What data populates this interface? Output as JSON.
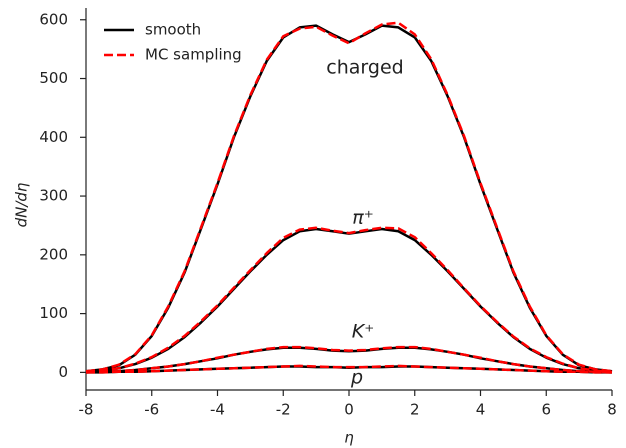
{
  "chart_data": {
    "type": "line",
    "xlabel": "η",
    "ylabel": "dN/dη",
    "x": [
      -8,
      -7.5,
      -7,
      -6.5,
      -6,
      -5.5,
      -5,
      -4.5,
      -4,
      -3.5,
      -3,
      -2.5,
      -2,
      -1.5,
      -1,
      -0.5,
      0,
      0.5,
      1,
      1.5,
      2,
      2.5,
      3,
      3.5,
      4,
      4.5,
      5,
      5.5,
      6,
      6.5,
      7,
      7.5,
      8
    ],
    "xlim": [
      -8,
      8
    ],
    "xticks": [
      -8,
      -6,
      -4,
      -2,
      0,
      2,
      4,
      6,
      8
    ],
    "ylim": [
      -30,
      620
    ],
    "yticks": [
      0,
      100,
      200,
      300,
      400,
      500,
      600
    ],
    "legend": "upper left",
    "grid": false,
    "annotations": [
      "charged",
      "π⁺",
      "K⁺",
      "p"
    ],
    "series": [
      {
        "name": "smooth",
        "color": "#000000",
        "dashed": false,
        "curves": [
          {
            "values": [
              2,
              5,
              12,
              30,
              62,
              110,
              170,
              245,
              320,
              400,
              470,
              530,
              570,
              587,
              590,
              575,
              562,
              575,
              590,
              587,
              570,
              530,
              470,
              400,
              320,
              245,
              170,
              110,
              62,
              30,
              12,
              5,
              2
            ]
          },
          {
            "values": [
              1,
              3,
              7,
              14,
              25,
              40,
              60,
              85,
              112,
              142,
              172,
              200,
              225,
              240,
              244,
              240,
              236,
              240,
              244,
              240,
              225,
              200,
              172,
              142,
              112,
              85,
              60,
              40,
              25,
              14,
              7,
              3,
              1
            ]
          },
          {
            "values": [
              0,
              1,
              2,
              4,
              7,
              10,
              14,
              19,
              24,
              30,
              35,
              39,
              42,
              42,
              40,
              37,
              36,
              37,
              40,
              42,
              42,
              39,
              35,
              30,
              24,
              19,
              14,
              10,
              7,
              4,
              2,
              1,
              0
            ]
          },
          {
            "values": [
              0,
              0,
              1,
              1,
              2,
              3,
              4,
              5,
              6,
              7,
              8,
              9,
              10,
              10,
              9,
              9,
              8,
              9,
              9,
              10,
              10,
              9,
              8,
              7,
              6,
              5,
              4,
              3,
              2,
              1,
              1,
              0,
              0
            ]
          }
        ]
      },
      {
        "name": "MC sampling",
        "color": "#ff0000",
        "dashed": true,
        "curves": [
          {
            "values": [
              2,
              5,
              13,
              31,
              63,
              112,
              172,
              247,
              322,
              402,
              472,
              532,
              572,
              585,
              588,
              573,
              560,
              577,
              592,
              595,
              575,
              533,
              472,
              402,
              322,
              247,
              172,
              112,
              63,
              31,
              13,
              5,
              2
            ]
          },
          {
            "values": [
              1,
              3,
              7,
              15,
              26,
              42,
              62,
              87,
              114,
              144,
              174,
              203,
              229,
              243,
              246,
              241,
              237,
              242,
              246,
              245,
              230,
              203,
              174,
              143,
              113,
              86,
              61,
              41,
              26,
              15,
              7,
              3,
              1
            ]
          },
          {
            "values": [
              0,
              1,
              2,
              4,
              7,
              10,
              14,
              19,
              25,
              30,
              35,
              40,
              43,
              43,
              41,
              38,
              37,
              38,
              41,
              43,
              43,
              40,
              35,
              30,
              25,
              19,
              14,
              10,
              7,
              4,
              2,
              1,
              0
            ]
          },
          {
            "values": [
              0,
              0,
              1,
              1,
              2,
              3,
              4,
              5,
              6,
              7,
              8,
              9,
              10,
              11,
              10,
              9,
              9,
              9,
              10,
              11,
              10,
              9,
              8,
              7,
              6,
              5,
              4,
              3,
              2,
              1,
              1,
              0,
              0
            ]
          }
        ]
      }
    ]
  }
}
